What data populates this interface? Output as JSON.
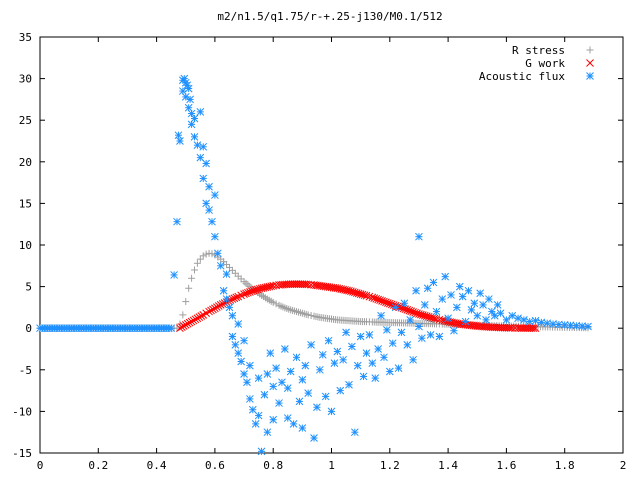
{
  "chart_data": {
    "type": "scatter",
    "title": "m2/n1.5/q1.75/r-+.25-j130/M0.1/512",
    "xlabel": "",
    "ylabel": "",
    "xlim": [
      0,
      2
    ],
    "ylim": [
      -15,
      35
    ],
    "x_ticks": [
      "0",
      "0.2",
      "0.4",
      "0.6",
      "0.8",
      "1",
      "1.2",
      "1.4",
      "1.6",
      "1.8",
      "2"
    ],
    "y_ticks": [
      "-15",
      "-10",
      "-5",
      "0",
      "5",
      "10",
      "15",
      "20",
      "25",
      "30",
      "35"
    ],
    "grid": false,
    "legend_position": "top-right",
    "series": [
      {
        "name": "R stress",
        "marker": "plus",
        "color": "#a0a0a0",
        "x": [
          0.0,
          0.05,
          0.1,
          0.15,
          0.2,
          0.25,
          0.3,
          0.35,
          0.4,
          0.45,
          0.47,
          0.48,
          0.49,
          0.5,
          0.51,
          0.52,
          0.53,
          0.54,
          0.55,
          0.56,
          0.57,
          0.58,
          0.59,
          0.6,
          0.61,
          0.62,
          0.63,
          0.64,
          0.65,
          0.66,
          0.67,
          0.68,
          0.7,
          0.72,
          0.74,
          0.76,
          0.78,
          0.8,
          0.82,
          0.84,
          0.86,
          0.88,
          0.9,
          0.92,
          0.94,
          0.96,
          0.98,
          1.0,
          1.02,
          1.04,
          1.06,
          1.08,
          1.1,
          1.12,
          1.14,
          1.16,
          1.18,
          1.2,
          1.22,
          1.24,
          1.26,
          1.28,
          1.3,
          1.32,
          1.34,
          1.36,
          1.38,
          1.4,
          1.42,
          1.44,
          1.46,
          1.48,
          1.5,
          1.55,
          1.6,
          1.65,
          1.7,
          1.75,
          1.8,
          1.85,
          1.88
        ],
        "y": [
          0,
          0,
          0,
          0,
          0,
          0,
          0,
          0,
          0,
          0,
          0,
          0.5,
          1.6,
          3.2,
          4.8,
          6.0,
          7.0,
          7.8,
          8.3,
          8.7,
          8.9,
          9.0,
          8.95,
          8.8,
          8.55,
          8.3,
          8.0,
          7.65,
          7.3,
          6.95,
          6.6,
          6.25,
          5.6,
          5.0,
          4.45,
          3.95,
          3.5,
          3.1,
          2.75,
          2.45,
          2.2,
          2.0,
          1.8,
          1.6,
          1.45,
          1.3,
          1.2,
          1.1,
          1.0,
          0.95,
          0.9,
          0.85,
          0.8,
          0.78,
          0.75,
          0.72,
          0.7,
          0.68,
          0.66,
          0.64,
          0.62,
          0.6,
          0.58,
          0.56,
          0.54,
          0.52,
          0.5,
          0.48,
          0.46,
          0.44,
          0.42,
          0.4,
          0.38,
          0.32,
          0.27,
          0.22,
          0.18,
          0.14,
          0.1,
          0.07,
          0.05
        ]
      },
      {
        "name": "G work",
        "marker": "cross",
        "color": "#ff0000",
        "x": [
          0.48,
          0.5,
          0.52,
          0.54,
          0.56,
          0.58,
          0.6,
          0.62,
          0.64,
          0.66,
          0.68,
          0.7,
          0.72,
          0.74,
          0.76,
          0.78,
          0.8,
          0.82,
          0.84,
          0.86,
          0.88,
          0.9,
          0.92,
          0.94,
          0.96,
          0.98,
          1.0,
          1.02,
          1.04,
          1.06,
          1.08,
          1.1,
          1.12,
          1.14,
          1.16,
          1.18,
          1.2,
          1.22,
          1.24,
          1.26,
          1.28,
          1.3,
          1.32,
          1.34,
          1.36,
          1.38,
          1.4,
          1.42,
          1.44,
          1.46,
          1.48,
          1.5,
          1.52,
          1.54,
          1.56,
          1.58,
          1.6,
          1.62,
          1.64,
          1.66,
          1.68,
          1.7
        ],
        "y": [
          0,
          0.4,
          0.8,
          1.2,
          1.6,
          2.0,
          2.4,
          2.8,
          3.15,
          3.5,
          3.8,
          4.1,
          4.35,
          4.6,
          4.8,
          4.95,
          5.1,
          5.2,
          5.25,
          5.3,
          5.3,
          5.3,
          5.25,
          5.2,
          5.1,
          5.0,
          4.9,
          4.8,
          4.65,
          4.5,
          4.3,
          4.1,
          3.9,
          3.7,
          3.45,
          3.2,
          2.95,
          2.7,
          2.45,
          2.2,
          1.95,
          1.7,
          1.5,
          1.3,
          1.1,
          0.95,
          0.8,
          0.65,
          0.52,
          0.42,
          0.33,
          0.25,
          0.19,
          0.14,
          0.1,
          0.07,
          0.05,
          0.03,
          0.02,
          0.01,
          0.01,
          0.0
        ]
      },
      {
        "name": "Acoustic flux",
        "marker": "star",
        "color": "#1e90ff",
        "x": [
          0.0,
          0.05,
          0.1,
          0.15,
          0.2,
          0.25,
          0.3,
          0.35,
          0.4,
          0.45,
          0.47,
          0.475,
          0.48,
          0.49,
          0.49,
          0.495,
          0.5,
          0.5,
          0.505,
          0.51,
          0.51,
          0.515,
          0.52,
          0.52,
          0.53,
          0.53,
          0.54,
          0.55,
          0.55,
          0.56,
          0.56,
          0.57,
          0.57,
          0.58,
          0.58,
          0.59,
          0.6,
          0.6,
          0.61,
          0.62,
          0.63,
          0.64,
          0.64,
          0.65,
          0.66,
          0.66,
          0.67,
          0.68,
          0.68,
          0.69,
          0.7,
          0.7,
          0.71,
          0.72,
          0.72,
          0.73,
          0.74,
          0.75,
          0.75,
          0.76,
          0.77,
          0.78,
          0.78,
          0.79,
          0.8,
          0.8,
          0.81,
          0.82,
          0.83,
          0.84,
          0.85,
          0.85,
          0.86,
          0.87,
          0.88,
          0.89,
          0.9,
          0.9,
          0.91,
          0.92,
          0.93,
          0.94,
          0.95,
          0.96,
          0.97,
          0.98,
          0.99,
          1.0,
          1.01,
          1.02,
          1.03,
          1.04,
          1.05,
          1.06,
          1.07,
          1.08,
          1.09,
          1.1,
          1.11,
          1.12,
          1.13,
          1.14,
          1.15,
          1.16,
          1.17,
          1.18,
          1.19,
          1.2,
          1.21,
          1.22,
          1.23,
          1.24,
          1.25,
          1.26,
          1.27,
          1.28,
          1.29,
          1.3,
          1.3,
          1.31,
          1.32,
          1.33,
          1.34,
          1.35,
          1.36,
          1.37,
          1.38,
          1.39,
          1.4,
          1.41,
          1.42,
          1.43,
          1.44,
          1.45,
          1.46,
          1.47,
          1.48,
          1.49,
          1.5,
          1.51,
          1.52,
          1.53,
          1.54,
          1.55,
          1.56,
          1.57,
          1.58,
          1.6,
          1.62,
          1.64,
          1.66,
          1.68,
          1.7,
          1.72,
          1.74,
          1.76,
          1.78,
          1.8,
          1.82,
          1.84,
          1.86,
          1.88
        ],
        "y": [
          0,
          0,
          0,
          0,
          0,
          0,
          0,
          0,
          0,
          0,
          12.8,
          23.2,
          22.5,
          29.8,
          28.5,
          30.0,
          29.5,
          27.8,
          29.2,
          28.8,
          26.5,
          27.5,
          25.8,
          24.5,
          25.2,
          23.0,
          22.0,
          20.5,
          26.0,
          21.8,
          18.0,
          15.0,
          19.8,
          14.2,
          17.0,
          12.8,
          16.0,
          11.0,
          9.0,
          7.5,
          4.5,
          3.5,
          6.5,
          2.5,
          -1.0,
          1.5,
          -2.0,
          -3.0,
          0.5,
          -4.0,
          -5.5,
          -1.5,
          -6.5,
          -8.5,
          -4.5,
          -9.8,
          -11.5,
          -10.5,
          -6.0,
          -14.8,
          -8.0,
          -12.5,
          -5.5,
          -3.0,
          -7.0,
          -11.0,
          -4.8,
          -9.0,
          -6.5,
          -2.5,
          -10.8,
          -7.2,
          -5.2,
          -11.5,
          -3.5,
          -8.8,
          -6.2,
          -12.0,
          -4.5,
          -7.8,
          -2.0,
          -13.2,
          -9.5,
          -5.0,
          -3.2,
          -8.2,
          -1.5,
          -10.0,
          -4.2,
          -2.8,
          -7.5,
          -3.8,
          -0.5,
          -6.8,
          -2.2,
          -12.5,
          -4.5,
          -1.0,
          -5.8,
          -3.0,
          -0.8,
          -4.2,
          -6.0,
          -2.5,
          1.5,
          -3.5,
          -0.2,
          -5.2,
          -1.8,
          2.5,
          -4.8,
          -0.5,
          3.0,
          -2.0,
          1.0,
          -3.8,
          4.5,
          0.2,
          11.0,
          -1.2,
          2.8,
          4.8,
          -0.8,
          5.5,
          2.0,
          -1.0,
          3.5,
          6.2,
          1.2,
          4.0,
          -0.3,
          2.5,
          5.0,
          3.8,
          0.8,
          4.5,
          2.2,
          3.0,
          1.5,
          4.2,
          2.8,
          1.0,
          3.5,
          2.0,
          1.5,
          2.8,
          1.8,
          1.0,
          1.5,
          1.2,
          1.0,
          0.8,
          0.9,
          0.7,
          0.6,
          0.5,
          0.45,
          0.4,
          0.35,
          0.3,
          0.25,
          0.2
        ]
      }
    ]
  }
}
